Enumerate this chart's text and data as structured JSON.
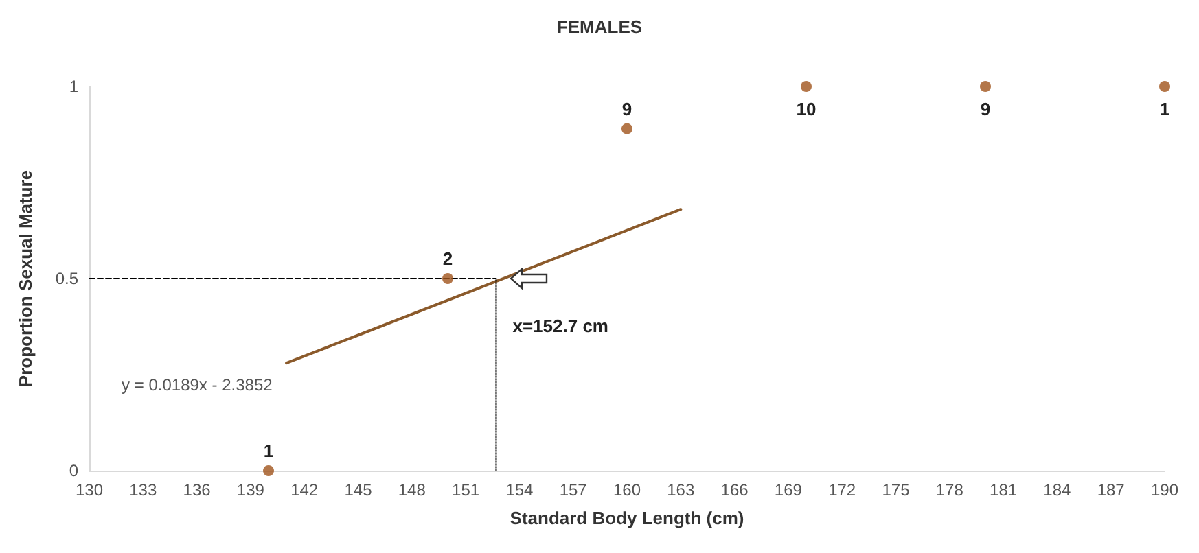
{
  "chart_data": {
    "type": "scatter",
    "title": "FEMALES",
    "xlabel": "Standard Body Length (cm)",
    "ylabel": "Proportion Sexual Mature",
    "xlim": [
      130,
      190
    ],
    "xticks": [
      130,
      133,
      136,
      139,
      142,
      145,
      148,
      151,
      154,
      157,
      160,
      163,
      166,
      169,
      172,
      175,
      178,
      181,
      184,
      187,
      190
    ],
    "ylim": [
      0,
      1
    ],
    "yticks": [
      0,
      0.5,
      1
    ],
    "grid": false,
    "marker": "circle",
    "series": [
      {
        "color": "#a0541c",
        "x": [
          140,
          150,
          160,
          170,
          180,
          190
        ],
        "values": [
          0,
          0.5,
          0.89,
          1,
          1,
          1
        ]
      },
      {
        "type": "line",
        "color": "#8b5a2b",
        "x": [
          141,
          163
        ],
        "values": [
          0.28,
          0.68
        ],
        "marker": "none",
        "line_style": "solid"
      },
      {
        "type": "line",
        "color": "#000000",
        "x": [
          130,
          152.7
        ],
        "values": [
          0.5,
          0.5
        ],
        "marker": "none",
        "line_style": "dashed"
      },
      {
        "type": "line",
        "color": "#000000",
        "x": [
          152.7,
          152.7
        ],
        "values": [
          0,
          0.5
        ],
        "marker": "none",
        "line_style": "dotted"
      }
    ],
    "annotations": [
      "y = 0.0189x - 2.3852",
      {
        "text": "x=152.7 cm",
        "x": 152.7,
        "y": 0.5
      },
      {
        "text": "1",
        "x": 140,
        "y": 0
      },
      {
        "text": "2",
        "x": 150,
        "y": 0.5
      },
      {
        "text": "9",
        "x": 160,
        "y": 0.89
      },
      {
        "text": "10",
        "x": 170,
        "y": 1
      },
      {
        "text": "9",
        "x": 180,
        "y": 1
      },
      {
        "text": "1",
        "x": 190,
        "y": 1
      }
    ]
  }
}
